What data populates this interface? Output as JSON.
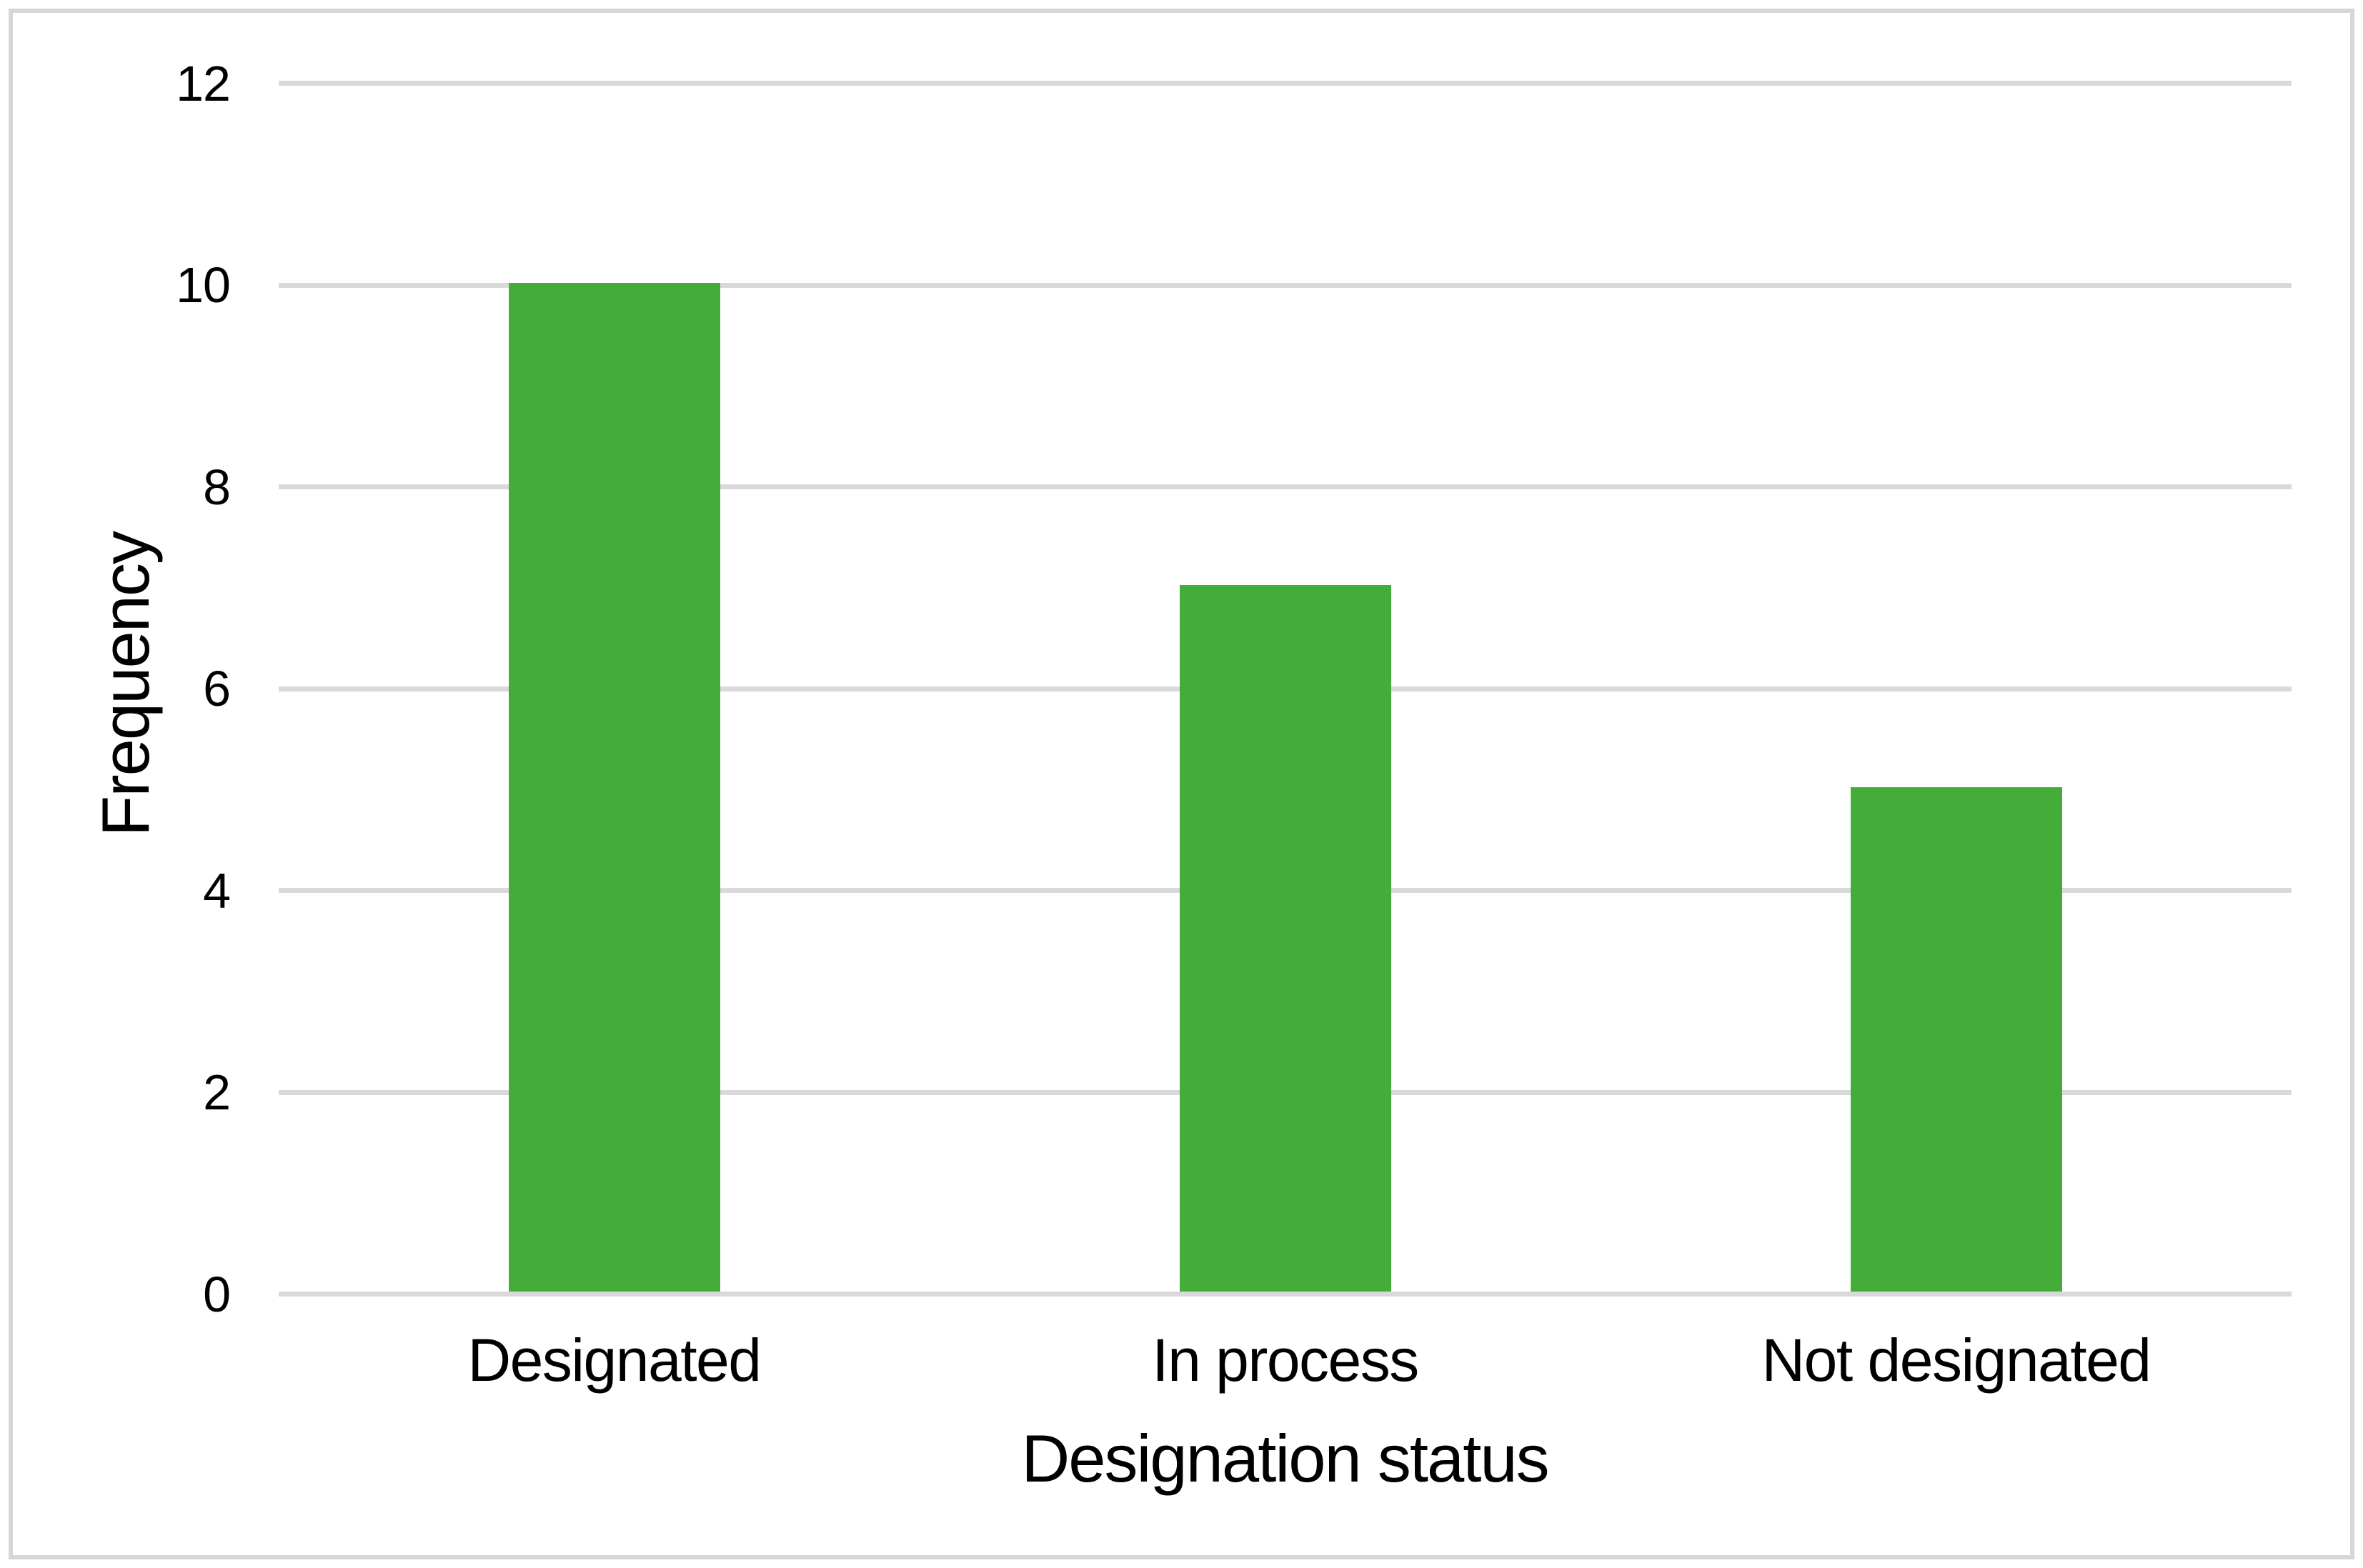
{
  "chart_data": {
    "type": "bar",
    "categories": [
      "Designated",
      "In process",
      "Not designated"
    ],
    "values": [
      10,
      7,
      5
    ],
    "title": "",
    "xlabel": "Designation status",
    "ylabel": "Frequency",
    "yticks": [
      0,
      2,
      4,
      6,
      8,
      10,
      12
    ],
    "ylim": [
      0,
      12
    ],
    "grid": true,
    "legend": false,
    "bar_color": "#44ad3a",
    "gridline_color": "#d9d9d9",
    "frame_border_color": "#d6d6d6",
    "text_color": "#000000",
    "background_color": "#ffffff"
  }
}
